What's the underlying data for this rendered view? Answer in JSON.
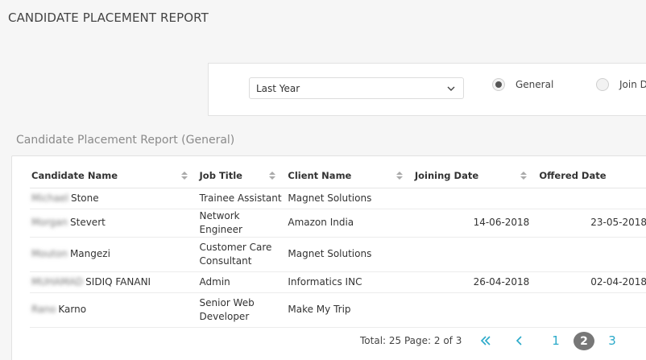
{
  "page_title": "CANDIDATE PLACEMENT REPORT",
  "filter": {
    "period_selected": "Last Year",
    "radio_general": "General",
    "radio_join": "Join D",
    "selected": "General"
  },
  "section_title": "Candidate Placement Report (General)",
  "table": {
    "headers": [
      "Candidate Name",
      "Job Title",
      "Client Name",
      "Joining Date",
      "Offered Date"
    ],
    "rows": [
      {
        "name_blur": "Michael",
        "name": "Stone",
        "job": "Trainee Assistant",
        "client": "Magnet Solutions",
        "joining": "",
        "offered": ""
      },
      {
        "name_blur": "Morgan",
        "name": "Stevert",
        "job": "Network Engineer",
        "client": "Amazon India",
        "joining": "14-06-2018",
        "offered": "23-05-2018"
      },
      {
        "name_blur": "Mouton",
        "name": "Mangezi",
        "job": "Customer Care Consultant",
        "client": "Magnet Solutions",
        "joining": "",
        "offered": ""
      },
      {
        "name_blur": "MUHAMAD",
        "name": "SIDIQ FANANI",
        "job": "Admin",
        "client": "Informatics INC",
        "joining": "26-04-2018",
        "offered": "02-04-2018"
      },
      {
        "name_blur": "Rano",
        "name": "Karno",
        "job": "Senior Web Developer",
        "client": "Make My Trip",
        "joining": "",
        "offered": ""
      }
    ]
  },
  "pager": {
    "total_text": "Total: 25 Page: 2 of 3",
    "pages": [
      "1",
      "2",
      "3"
    ],
    "current": "2"
  },
  "colors": {
    "accent": "#29a9c9",
    "active_page": "#777777"
  },
  "icons": {
    "first": "double-chevron-left-icon",
    "prev": "chevron-left-icon",
    "sort": "sort-updown-icon",
    "dropdown": "chevron-down-icon"
  }
}
